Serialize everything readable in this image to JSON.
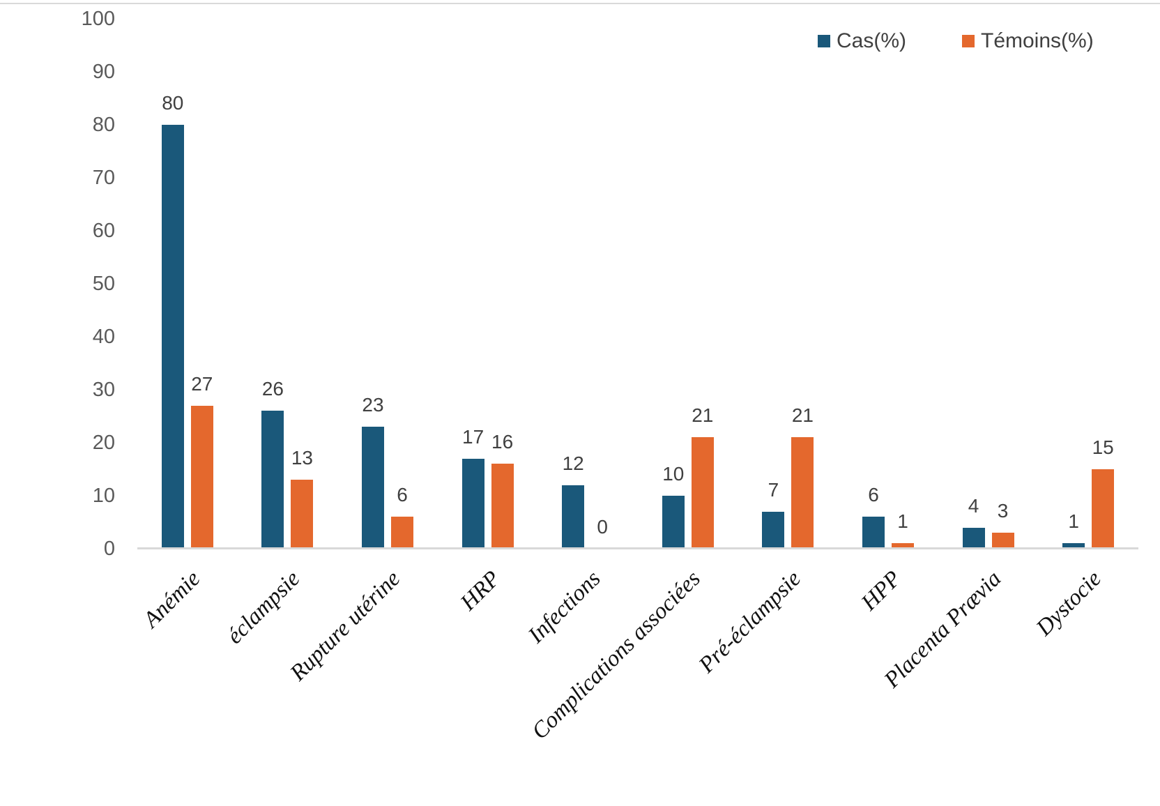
{
  "chart_data": {
    "type": "bar",
    "title": "",
    "xlabel": "",
    "ylabel": "",
    "categories": [
      "Anémie",
      "éclampsie",
      "Rupture utérine",
      "HRP",
      "Infections",
      "Complications associées",
      "Pré-éclampsie",
      "HPP",
      "Placenta Prævia",
      "Dystocie"
    ],
    "series": [
      {
        "name": "Cas(%)",
        "color": "#1A587A",
        "values": [
          80,
          26,
          23,
          17,
          12,
          10,
          7,
          6,
          4,
          1
        ]
      },
      {
        "name": "Témoins(%)",
        "color": "#E4682D",
        "values": [
          27,
          13,
          6,
          16,
          0,
          21,
          21,
          1,
          3,
          15
        ]
      }
    ],
    "ylim": [
      0,
      100
    ],
    "yticks": [
      0,
      10,
      20,
      30,
      40,
      50,
      60,
      70,
      80,
      90,
      100
    ],
    "grid": "off",
    "legend_position": "top-right",
    "bar_value_labels": true
  },
  "legend": {
    "items": [
      {
        "label": "Cas(%)"
      },
      {
        "label": "Témoins(%)"
      }
    ]
  },
  "colors": {
    "background": "#FFFFFF",
    "axis_line": "#D9D9D9",
    "top_border": "#D9D9D9",
    "tick_label": "#595959",
    "data_label": "#404040",
    "legend_text": "#404040",
    "category_label": "#111111",
    "series_cas": "#1A587A",
    "series_temoins": "#E4682D"
  }
}
